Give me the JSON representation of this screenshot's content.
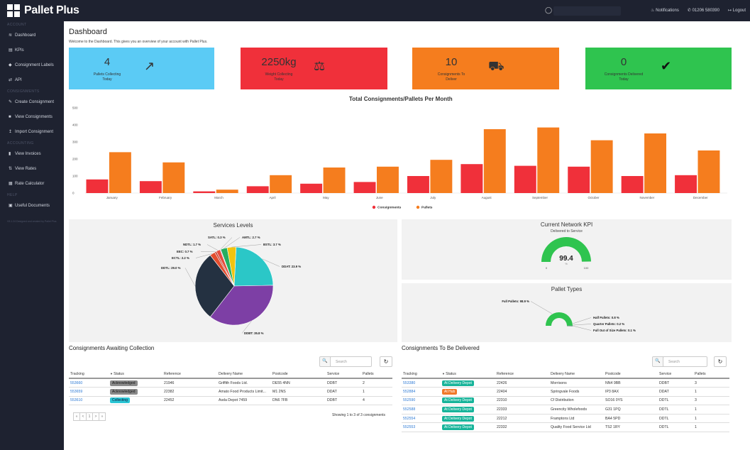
{
  "app": {
    "name": "Pallet Plus"
  },
  "topbar": {
    "notifications": "Notifications",
    "phone": "01206 580390",
    "logout": "Logout",
    "search_icon": "search-icon"
  },
  "sidebar": {
    "sections": [
      {
        "title": "ACCOUNT",
        "items": [
          {
            "label": "Dashboard",
            "icon": "chart-icon"
          },
          {
            "label": "KPIs",
            "icon": "bar-chart-icon"
          },
          {
            "label": "Consignment Labels",
            "icon": "tag-icon"
          },
          {
            "label": "API",
            "icon": "exchange-icon"
          }
        ]
      },
      {
        "title": "CONSIGNMENTS",
        "items": [
          {
            "label": "Create Consignment",
            "icon": "pencil-icon"
          },
          {
            "label": "View Consignments",
            "icon": "folder-icon"
          },
          {
            "label": "Import Consignment",
            "icon": "upload-icon"
          }
        ]
      },
      {
        "title": "ACCOUNTING",
        "items": [
          {
            "label": "View Invoices",
            "icon": "file-icon"
          },
          {
            "label": "View Rates",
            "icon": "rates-icon"
          },
          {
            "label": "Rate Calculator",
            "icon": "calculator-icon"
          }
        ]
      },
      {
        "title": "HELP",
        "items": [
          {
            "label": "Useful Documents",
            "icon": "document-icon"
          }
        ]
      }
    ],
    "footer": "V5.1.24 Designed and created by Pallet Plus"
  },
  "dashboard": {
    "title": "Dashboard",
    "subtitle": "Welcome to the Dashboard. This gives you an overview of your account with Pallet Plus.",
    "tiles": [
      {
        "value": "4",
        "label": "Pallets Collecting Today",
        "color": "#5bcbf5",
        "icon": "external-link-icon"
      },
      {
        "value": "2250kg",
        "label": "Weight Collecting Today",
        "color": "#f0303a",
        "icon": "balance-scale-icon"
      },
      {
        "value": "10",
        "label": "Consignments To Deliver",
        "color": "#f57d1e",
        "icon": "truck-icon"
      },
      {
        "value": "0",
        "label": "Consignments Delivered Today",
        "color": "#2fc44f",
        "icon": "check-icon"
      }
    ]
  },
  "chart_data": [
    {
      "type": "bar",
      "title": "Total Consignments/Pallets Per Month",
      "categories": [
        "January",
        "February",
        "March",
        "April",
        "May",
        "June",
        "July",
        "August",
        "September",
        "October",
        "November",
        "December"
      ],
      "series": [
        {
          "name": "Consignments",
          "color": "#f0303a",
          "values": [
            80,
            70,
            10,
            40,
            55,
            65,
            100,
            170,
            160,
            155,
            100,
            105
          ]
        },
        {
          "name": "Pallets",
          "color": "#f57d1e",
          "values": [
            240,
            180,
            20,
            105,
            150,
            155,
            195,
            375,
            385,
            310,
            350,
            250
          ]
        }
      ],
      "ylim": [
        0,
        500
      ],
      "yticks": [
        0,
        100,
        200,
        300,
        400,
        500
      ],
      "grid": false,
      "legend": "bottom"
    },
    {
      "type": "pie",
      "title": "Services Levels",
      "slices": [
        {
          "label": "DDAT",
          "value": 23.9,
          "text": "DDAT: 23.9 %",
          "color": "#2bc7c7"
        },
        {
          "label": "DDBT",
          "value": 35.8,
          "text": "DDBT: 35.8 %",
          "color": "#7d3fa5"
        },
        {
          "label": "DDTL",
          "value": 29.0,
          "text": "DDTL: 29.0 %",
          "color": "#243141"
        },
        {
          "label": "ECTL",
          "value": 2.2,
          "text": "ECTL: 2.2 %",
          "color": "#e44d2e"
        },
        {
          "label": "EEC",
          "value": 0.7,
          "text": "EEC: 0.7 %",
          "color": "#c0392b"
        },
        {
          "label": "NDTL",
          "value": 1.7,
          "text": "NDTL: 1.7 %",
          "color": "#e74c3c"
        },
        {
          "label": "SATL",
          "value": 0.3,
          "text": "SATL: 0.3 %",
          "color": "#9b59b6"
        },
        {
          "label": "AMTL",
          "value": 2.7,
          "text": "AMTL: 2.7 %",
          "color": "#27ae60"
        },
        {
          "label": "BSTL",
          "value": 3.7,
          "text": "BSTL: 3.7 %",
          "color": "#f1c40f"
        }
      ]
    },
    {
      "type": "gauge",
      "title": "Current Network KPI",
      "subtitle": "Delivered to Service",
      "value": 99.4,
      "unit": "%",
      "min": 0,
      "max": 100,
      "color": "#2fc44f"
    },
    {
      "type": "pie",
      "title": "Pallet Types",
      "donut": "semi",
      "slices": [
        {
          "label": "Full Pallets",
          "value": 98.9,
          "text": "Full Pallets: 98.9 %",
          "color": "#2fc44f"
        },
        {
          "label": "Half Pallets",
          "value": 0.8,
          "text": "Half Pallets: 0.8 %",
          "color": "#27ae60"
        },
        {
          "label": "Quarter Pallets",
          "value": 0.2,
          "text": "Quarter Pallets: 0.2 %",
          "color": "#1e8449"
        },
        {
          "label": "Full Out of Size Pallets",
          "value": 0.1,
          "text": "Full Out of Size Pallets: 0.1 %",
          "color": "#145a32"
        }
      ]
    }
  ],
  "awaiting": {
    "title": "Consignments Awaiting Collection",
    "search_placeholder": "Search",
    "columns": [
      "Tracking",
      "Status",
      "Reference",
      "Delivery Name",
      "Postcode",
      "Service",
      "Pallets"
    ],
    "rows": [
      {
        "tracking": "553660",
        "status": "Acknowledged",
        "reference": "21946",
        "name": "Griffith Foods Ltd.",
        "postcode": "DE55 4NN",
        "service": "DDBT",
        "pallets": "2"
      },
      {
        "tracking": "553659",
        "status": "Acknowledged",
        "reference": "22382",
        "name": "Amato Food Products Limit...",
        "postcode": "M1 2NS",
        "service": "DDAT",
        "pallets": "1"
      },
      {
        "tracking": "553610",
        "status": "Collecting",
        "reference": "22452",
        "name": "Asda Depot 7459",
        "postcode": "DN6 7FB",
        "service": "DDBT",
        "pallets": "4"
      }
    ],
    "pager": [
      "«",
      "<",
      "1",
      ">",
      "»"
    ],
    "showing": "Showing 1 to 3 of 3 consignments"
  },
  "to_deliver": {
    "title": "Consignments To Be Delivered",
    "search_placeholder": "Search",
    "columns": [
      "Tracking",
      "Status",
      "Reference",
      "Delivery Name",
      "Postcode",
      "Service",
      "Pallets"
    ],
    "rows": [
      {
        "tracking": "553380",
        "status": "At Delivery Depot",
        "reference": "22426",
        "name": "Morrisons",
        "postcode": "NN4 9BB",
        "service": "DDBT",
        "pallets": "3"
      },
      {
        "tracking": "552884",
        "status": "At Hub",
        "reference": "22404",
        "name": "Springvale Foods",
        "postcode": "IP3 8AX",
        "service": "DDAT",
        "pallets": "1"
      },
      {
        "tracking": "552590",
        "status": "At Delivery Depot",
        "reference": "22310",
        "name": "Cf Distribution",
        "postcode": "SO16 0YS",
        "service": "DDTL",
        "pallets": "3"
      },
      {
        "tracking": "552588",
        "status": "At Delivery Depot",
        "reference": "22333",
        "name": "Greencity Wholefoods",
        "postcode": "G31 1PQ",
        "service": "DDTL",
        "pallets": "1"
      },
      {
        "tracking": "552554",
        "status": "At Delivery Depot",
        "reference": "22212",
        "name": "Framptons Ltd",
        "postcode": "BA4 5PD",
        "service": "DDTL",
        "pallets": "1"
      },
      {
        "tracking": "552553",
        "status": "At Delivery Depot",
        "reference": "22332",
        "name": "Quality Food Service Ltd",
        "postcode": "TS2 1RY",
        "service": "DDTL",
        "pallets": "1"
      }
    ]
  }
}
